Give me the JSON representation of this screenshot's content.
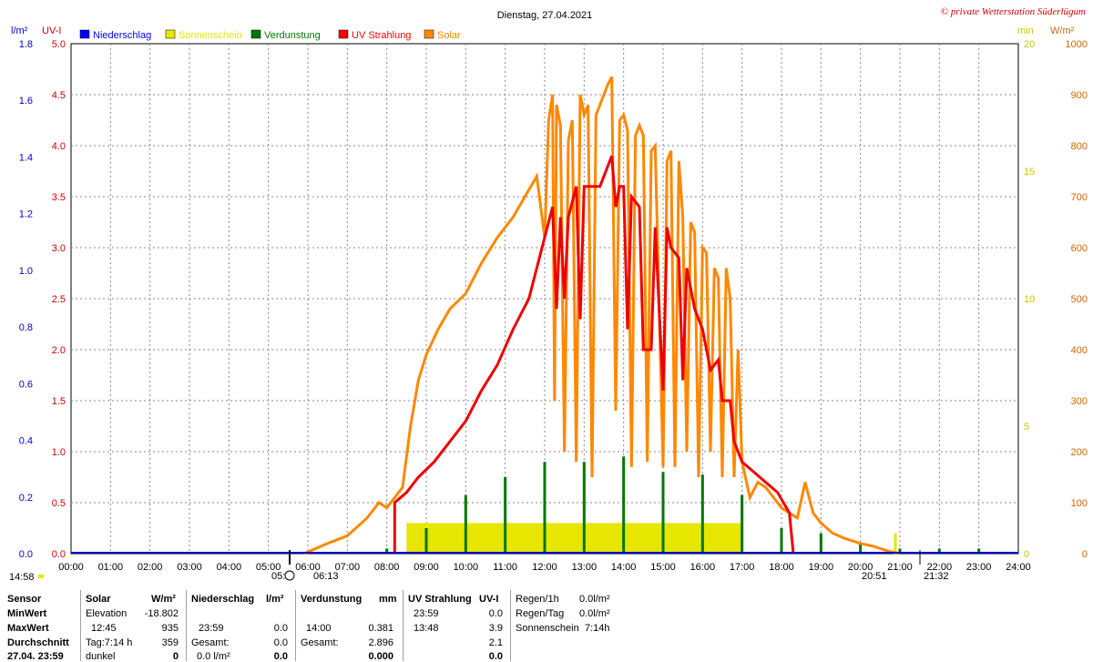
{
  "header": {
    "title": "Dienstag, 27.04.2021",
    "copyright": "© private Wetterstation Süderlügum",
    "unit_left1": "l/m²",
    "unit_left2": "UV-I",
    "unit_right1": "min",
    "unit_right2": "W/m²"
  },
  "legend": [
    {
      "label": "Niederschlag",
      "color": "#0000ff"
    },
    {
      "label": "Sonnenschein",
      "color": "#e6e600"
    },
    {
      "label": "Verdunstung",
      "color": "#007700"
    },
    {
      "label": "UV Strahlung",
      "color": "#ff0000"
    },
    {
      "label": "Solar",
      "color": "#ff8800"
    }
  ],
  "chart_data": {
    "type": "line",
    "x_ticks": [
      "00:00",
      "01:00",
      "02:00",
      "03:00",
      "04:00",
      "05:00",
      "06:00",
      "07:00",
      "08:00",
      "09:00",
      "10:00",
      "11:00",
      "12:00",
      "13:00",
      "14:00",
      "15:00",
      "16:00",
      "17:00",
      "18:00",
      "19:00",
      "20:00",
      "21:00",
      "22:00",
      "23:00",
      "24:00"
    ],
    "y_ticks_rain": [
      "0.0",
      "0.2",
      "0.4",
      "0.6",
      "0.8",
      "1.0",
      "1.2",
      "1.4",
      "1.6",
      "1.8"
    ],
    "y_ticks_uv": [
      "0.0",
      "0.5",
      "1.0",
      "1.5",
      "2.0",
      "2.5",
      "3.0",
      "3.5",
      "4.0",
      "4.5",
      "5.0"
    ],
    "y_ticks_min": [
      "0",
      "5",
      "10",
      "15",
      "20"
    ],
    "y_ticks_solar": [
      "0",
      "100",
      "200",
      "300",
      "400",
      "500",
      "600",
      "700",
      "800",
      "900",
      "1000"
    ],
    "uv_range": [
      0,
      5
    ],
    "solar_range": [
      0,
      1000
    ],
    "sunshine_range": [
      0,
      20
    ],
    "grid": true,
    "series": [
      {
        "name": "Solar",
        "color": "#ff8800",
        "axis": "solar",
        "points": [
          [
            5.9,
            0
          ],
          [
            6.2,
            10
          ],
          [
            6.5,
            20
          ],
          [
            7.0,
            35
          ],
          [
            7.5,
            70
          ],
          [
            7.8,
            100
          ],
          [
            8.0,
            90
          ],
          [
            8.2,
            110
          ],
          [
            8.4,
            130
          ],
          [
            8.6,
            250
          ],
          [
            8.8,
            340
          ],
          [
            9.0,
            390
          ],
          [
            9.3,
            440
          ],
          [
            9.6,
            480
          ],
          [
            10.0,
            510
          ],
          [
            10.4,
            570
          ],
          [
            10.8,
            620
          ],
          [
            11.2,
            660
          ],
          [
            11.5,
            700
          ],
          [
            11.8,
            740
          ],
          [
            12.0,
            620
          ],
          [
            12.1,
            850
          ],
          [
            12.2,
            900
          ],
          [
            12.25,
            300
          ],
          [
            12.3,
            880
          ],
          [
            12.4,
            840
          ],
          [
            12.5,
            200
          ],
          [
            12.6,
            810
          ],
          [
            12.7,
            850
          ],
          [
            12.8,
            180
          ],
          [
            12.9,
            900
          ],
          [
            13.0,
            860
          ],
          [
            13.1,
            880
          ],
          [
            13.2,
            150
          ],
          [
            13.3,
            860
          ],
          [
            13.5,
            900
          ],
          [
            13.6,
            920
          ],
          [
            13.7,
            935
          ],
          [
            13.8,
            280
          ],
          [
            13.9,
            850
          ],
          [
            14.0,
            860
          ],
          [
            14.1,
            830
          ],
          [
            14.2,
            170
          ],
          [
            14.3,
            820
          ],
          [
            14.4,
            840
          ],
          [
            14.5,
            820
          ],
          [
            14.6,
            180
          ],
          [
            14.7,
            790
          ],
          [
            14.8,
            800
          ],
          [
            15.0,
            170
          ],
          [
            15.1,
            770
          ],
          [
            15.2,
            790
          ],
          [
            15.3,
            170
          ],
          [
            15.4,
            770
          ],
          [
            15.5,
            660
          ],
          [
            15.6,
            200
          ],
          [
            15.7,
            650
          ],
          [
            15.8,
            630
          ],
          [
            15.9,
            150
          ],
          [
            16.0,
            600
          ],
          [
            16.1,
            590
          ],
          [
            16.2,
            200
          ],
          [
            16.3,
            560
          ],
          [
            16.4,
            540
          ],
          [
            16.5,
            150
          ],
          [
            16.6,
            560
          ],
          [
            16.7,
            500
          ],
          [
            16.8,
            150
          ],
          [
            16.9,
            400
          ],
          [
            17.0,
            180
          ],
          [
            17.2,
            110
          ],
          [
            17.4,
            140
          ],
          [
            17.6,
            130
          ],
          [
            17.8,
            110
          ],
          [
            18.0,
            90
          ],
          [
            18.2,
            80
          ],
          [
            18.4,
            70
          ],
          [
            18.6,
            140
          ],
          [
            18.8,
            80
          ],
          [
            19.0,
            60
          ],
          [
            19.3,
            40
          ],
          [
            19.6,
            30
          ],
          [
            20.0,
            20
          ],
          [
            20.3,
            15
          ],
          [
            20.7,
            5
          ],
          [
            21.0,
            0
          ]
        ]
      },
      {
        "name": "UV Strahlung",
        "color": "#ff0000",
        "axis": "uv",
        "points": [
          [
            8.2,
            0
          ],
          [
            8.2,
            0.5
          ],
          [
            8.5,
            0.6
          ],
          [
            8.8,
            0.75
          ],
          [
            9.2,
            0.9
          ],
          [
            9.6,
            1.1
          ],
          [
            10.0,
            1.3
          ],
          [
            10.4,
            1.6
          ],
          [
            10.8,
            1.85
          ],
          [
            11.2,
            2.2
          ],
          [
            11.6,
            2.5
          ],
          [
            11.8,
            2.8
          ],
          [
            12.0,
            3.1
          ],
          [
            12.2,
            3.4
          ],
          [
            12.3,
            2.4
          ],
          [
            12.4,
            3.3
          ],
          [
            12.5,
            2.5
          ],
          [
            12.6,
            3.3
          ],
          [
            12.8,
            3.6
          ],
          [
            12.9,
            2.3
          ],
          [
            13.0,
            3.6
          ],
          [
            13.2,
            3.6
          ],
          [
            13.4,
            3.6
          ],
          [
            13.5,
            3.7
          ],
          [
            13.6,
            3.8
          ],
          [
            13.7,
            3.9
          ],
          [
            13.8,
            3.4
          ],
          [
            13.9,
            3.6
          ],
          [
            14.0,
            3.6
          ],
          [
            14.1,
            2.2
          ],
          [
            14.2,
            3.5
          ],
          [
            14.4,
            3.4
          ],
          [
            14.5,
            2.0
          ],
          [
            14.7,
            2.0
          ],
          [
            14.8,
            3.2
          ],
          [
            15.0,
            1.6
          ],
          [
            15.1,
            3.2
          ],
          [
            15.2,
            3.0
          ],
          [
            15.4,
            2.9
          ],
          [
            15.5,
            1.7
          ],
          [
            15.6,
            2.8
          ],
          [
            15.8,
            2.4
          ],
          [
            16.0,
            2.2
          ],
          [
            16.2,
            1.8
          ],
          [
            16.4,
            1.9
          ],
          [
            16.5,
            1.5
          ],
          [
            16.7,
            1.5
          ],
          [
            16.8,
            1.1
          ],
          [
            17.0,
            0.9
          ],
          [
            17.3,
            0.8
          ],
          [
            17.6,
            0.7
          ],
          [
            17.9,
            0.6
          ],
          [
            18.2,
            0.4
          ],
          [
            18.3,
            0
          ]
        ]
      },
      {
        "name": "Sonnenschein",
        "color": "#e6e600",
        "axis": "min",
        "points": [
          [
            8.5,
            1.2
          ],
          [
            9.0,
            1.2
          ],
          [
            10.0,
            1.2
          ],
          [
            11.0,
            1.2
          ],
          [
            12.0,
            1.2
          ],
          [
            13.0,
            1.2
          ],
          [
            14.0,
            1.2
          ],
          [
            14.7,
            1.2
          ],
          [
            15.0,
            1.2
          ],
          [
            16.0,
            1.2
          ],
          [
            16.7,
            1.2
          ]
        ]
      },
      {
        "name": "Verdunstung",
        "color": "#007700",
        "axis": "rain",
        "points": [
          [
            8.0,
            0.02
          ],
          [
            9.0,
            0.1
          ],
          [
            10.0,
            0.23
          ],
          [
            11.0,
            0.3
          ],
          [
            12.0,
            0.36
          ],
          [
            13.0,
            0.36
          ],
          [
            14.0,
            0.381
          ],
          [
            15.0,
            0.32
          ],
          [
            16.0,
            0.31
          ],
          [
            17.0,
            0.23
          ],
          [
            18.0,
            0.1
          ],
          [
            19.0,
            0.08
          ],
          [
            20.0,
            0.04
          ],
          [
            21.0,
            0.02
          ],
          [
            22.0,
            0.02
          ],
          [
            23.0,
            0.02
          ]
        ]
      }
    ]
  },
  "markers": {
    "left_time": "14:58",
    "sunrise": "05:",
    "sunrise2": "06:13",
    "sunset": "20:51",
    "sunset2": "21:32"
  },
  "table": {
    "c1": {
      "h": "Sensor",
      "r1": "MinWert",
      "r2": "MaxWert",
      "r3": "Durchschnitt",
      "r4": "27.04. 23:59"
    },
    "c2": {
      "h": "Solar",
      "hu": "W/m²",
      "r1a": "Elevation",
      "r1b": "-18.802",
      "r2a": "12:45",
      "r2b": "935",
      "r3a": "Tag:7:14 h",
      "r3b": "359",
      "r4a": "dunkel",
      "r4b": "0"
    },
    "c3": {
      "h": "Niederschlag",
      "hu": "l/m²",
      "r2a": "23:59",
      "r2b": "0.0",
      "r3a": "Gesamt:",
      "r3b": "0.0",
      "r4a": "0.0 l/m²",
      "r4b": "0.0"
    },
    "c4": {
      "h": "Verdunstung",
      "hu": "mm",
      "r2a": "14:00",
      "r2b": "0.381",
      "r3a": "Gesamt:",
      "r3b": "2.896",
      "r4b": "0.000"
    },
    "c5": {
      "h": "UV Strahlung",
      "hu": "UV-I",
      "r1a": "23:59",
      "r1b": "0.0",
      "r2a": "13:48",
      "r2b": "3.9",
      "r3b": "2.1",
      "r4b": "0.0"
    },
    "c6": {
      "r0a": "Regen/1h",
      "r0b": "0.0l/m²",
      "r1a": "Regen/Tag",
      "r1b": "0.0l/m²",
      "r2a": "Sonnenschein",
      "r2b": "7:14h"
    }
  }
}
